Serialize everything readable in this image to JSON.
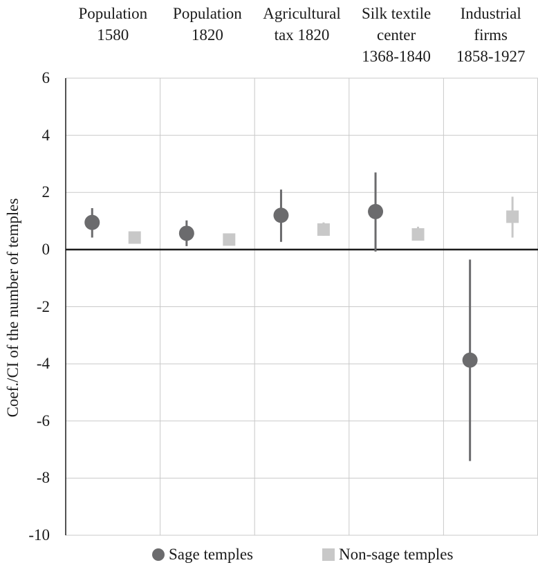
{
  "chart_data": {
    "type": "scatter",
    "categories": [
      "Population\n1580",
      "Population\n1820",
      "Agricultural\ntax 1820",
      "Silk textile\ncenter\n1368-1840",
      "Industrial\nfirms\n1858-1927"
    ],
    "ylabel": "Coef./CI of the number of temples",
    "ylim": [
      -10,
      6
    ],
    "yticks": [
      6,
      4,
      2,
      0,
      -2,
      -4,
      -6,
      -8,
      -10
    ],
    "grid": true,
    "legend_position": "bottom",
    "series": [
      {
        "name": "Sage temples",
        "marker": "circle",
        "color": "#6b6b6d",
        "points": [
          {
            "coef": 0.95,
            "ci": [
              0.42,
              1.45
            ]
          },
          {
            "coef": 0.57,
            "ci": [
              0.12,
              1.02
            ]
          },
          {
            "coef": 1.2,
            "ci": [
              0.27,
              2.1
            ]
          },
          {
            "coef": 1.33,
            "ci": [
              -0.07,
              2.7
            ]
          },
          {
            "coef": -3.87,
            "ci": [
              -7.4,
              -0.35
            ]
          }
        ]
      },
      {
        "name": "Non-sage temples",
        "marker": "square",
        "color": "#c8c8c8",
        "points": [
          {
            "coef": 0.42,
            "ci": [
              0.3,
              0.55
            ]
          },
          {
            "coef": 0.35,
            "ci": [
              0.25,
              0.45
            ]
          },
          {
            "coef": 0.7,
            "ci": [
              0.48,
              0.95
            ]
          },
          {
            "coef": 0.53,
            "ci": [
              0.33,
              0.8
            ]
          },
          {
            "coef": 1.15,
            "ci": [
              0.42,
              1.85
            ]
          }
        ]
      }
    ]
  }
}
